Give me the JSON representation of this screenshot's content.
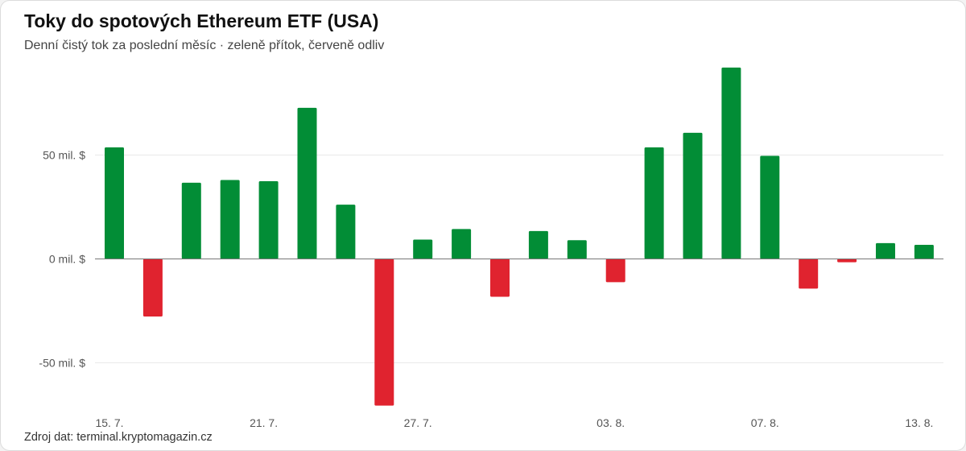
{
  "title": "Toky do spotových Ethereum ETF (USA)",
  "subtitle": "Denní čistý tok za poslední měsíc · zeleně přítok, červeně odliv",
  "source": "Zdroj dat: terminal.kryptomagazin.cz",
  "colors": {
    "inflow": "#028d36",
    "outflow": "#e0232f",
    "grid": "#e9e9e9",
    "zero_line": "#777777"
  },
  "chart_data": {
    "type": "bar",
    "title": "Toky do spotových Ethereum ETF (USA)",
    "subtitle": "Denní čistý tok za poslední měsíc · zeleně přítok, červeně odliv",
    "xlabel": "",
    "ylabel": "",
    "unit": "mil. $",
    "ylim": [
      -65,
      95
    ],
    "y_ticks": [
      {
        "value": 50,
        "label": "50 mil. $"
      },
      {
        "value": 0,
        "label": "0 mil. $"
      },
      {
        "value": -50,
        "label": "-50 mil. $"
      }
    ],
    "x_tick_labels": [
      {
        "index": 0,
        "label": "15. 7."
      },
      {
        "index": 4,
        "label": "21. 7."
      },
      {
        "index": 8,
        "label": "27. 7."
      },
      {
        "index": 13,
        "label": "03. 8."
      },
      {
        "index": 17,
        "label": "07. 8."
      },
      {
        "index": 21,
        "label": "13. 8."
      }
    ],
    "values": [
      53.7,
      -27.7,
      36.7,
      38.0,
      37.4,
      72.7,
      26.1,
      -70.6,
      9.3,
      14.4,
      -18.2,
      13.4,
      9.0,
      -11.2,
      53.7,
      60.7,
      92.1,
      49.6,
      -14.3,
      -1.6,
      7.6,
      6.8
    ],
    "grid": true,
    "legend": "none"
  }
}
